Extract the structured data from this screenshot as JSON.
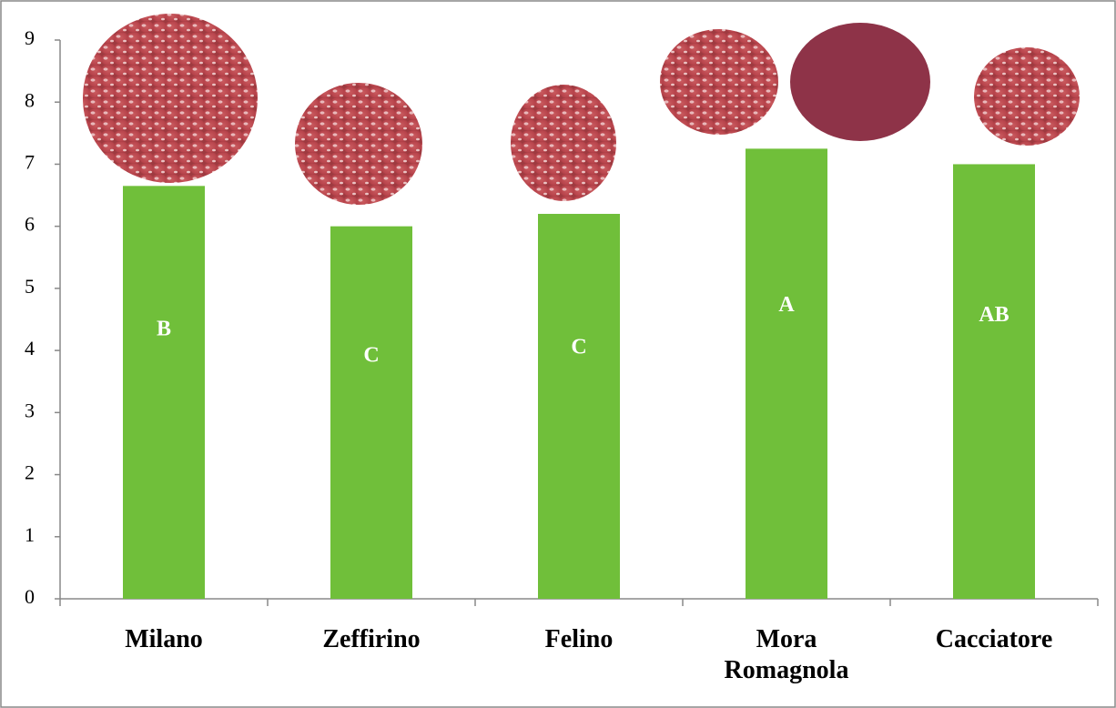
{
  "chart_data": {
    "type": "bar",
    "categories": [
      "Milano",
      "Zeffirino",
      "Felino",
      "Mora Romagnola",
      "Cacciatore"
    ],
    "values": [
      6.65,
      6.0,
      6.2,
      7.25,
      7.0
    ],
    "bar_labels": [
      "B",
      "C",
      "C",
      "A",
      "AB"
    ],
    "color": "#70bf3a",
    "ylim": [
      0,
      9
    ],
    "yticks": [
      0,
      1,
      2,
      3,
      4,
      5,
      6,
      7,
      8,
      9
    ],
    "grid": false
  }
}
